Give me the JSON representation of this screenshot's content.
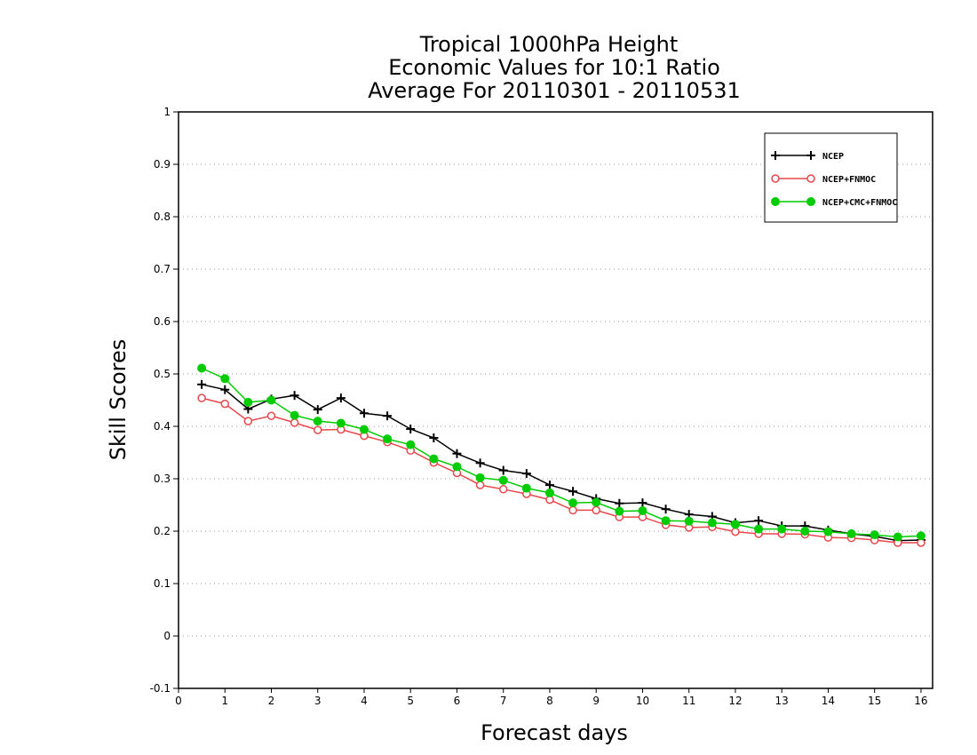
{
  "chart_data": {
    "type": "line",
    "title_lines": [
      "Tropical 1000hPa Height",
      "Economic Values for 10:1 Ratio",
      "Average For 20110301 - 20110531"
    ],
    "xlabel": "Forecast days",
    "ylabel": "Skill Scores",
    "xlim": [
      0,
      16.25
    ],
    "ylim": [
      -0.1,
      1
    ],
    "xticks": [
      0,
      1,
      2,
      3,
      4,
      5,
      6,
      7,
      8,
      9,
      10,
      11,
      12,
      13,
      14,
      15,
      16
    ],
    "xtick_labels": [
      "0",
      "1",
      "2",
      "3",
      "4",
      "5",
      "6",
      "7",
      "8",
      "9",
      "10",
      "11",
      "12",
      "13",
      "14",
      "15",
      "16"
    ],
    "yticks": [
      -0.1,
      0,
      0.1,
      0.2,
      0.3,
      0.4,
      0.5,
      0.6,
      0.7,
      0.8,
      0.9,
      1
    ],
    "ytick_labels": [
      "-0.1",
      "0",
      "0.1",
      "0.2",
      "0.3",
      "0.4",
      "0.5",
      "0.6",
      "0.7",
      "0.8",
      "0.9",
      "1"
    ],
    "grid": "horizontal-dotted",
    "legend_position": "top-right",
    "x": [
      0.5,
      1.0,
      1.5,
      2.0,
      2.5,
      3.0,
      3.5,
      4.0,
      4.5,
      5.0,
      5.5,
      6.0,
      6.5,
      7.0,
      7.5,
      8.0,
      8.5,
      9.0,
      9.5,
      10.0,
      10.5,
      11.0,
      11.5,
      12.0,
      12.5,
      13.0,
      13.5,
      14.0,
      14.5,
      15.0,
      15.5,
      16.0
    ],
    "series": [
      {
        "name": "NCEP",
        "color": "#000000",
        "marker": "plus",
        "values": [
          0.48,
          0.47,
          0.433,
          0.452,
          0.459,
          0.432,
          0.454,
          0.425,
          0.42,
          0.395,
          0.378,
          0.348,
          0.33,
          0.316,
          0.31,
          0.288,
          0.276,
          0.262,
          0.253,
          0.254,
          0.242,
          0.232,
          0.228,
          0.216,
          0.22,
          0.21,
          0.21,
          0.202,
          0.195,
          0.19,
          0.182,
          0.183
        ]
      },
      {
        "name": "NCEP+FNMOC",
        "color": "#e8474c",
        "marker": "open-circle",
        "values": [
          0.454,
          0.443,
          0.41,
          0.42,
          0.407,
          0.393,
          0.394,
          0.382,
          0.37,
          0.354,
          0.331,
          0.311,
          0.288,
          0.28,
          0.271,
          0.26,
          0.24,
          0.24,
          0.227,
          0.227,
          0.212,
          0.207,
          0.208,
          0.199,
          0.195,
          0.195,
          0.194,
          0.188,
          0.187,
          0.183,
          0.178,
          0.178
        ]
      },
      {
        "name": "NCEP+CMC+FNMOC",
        "color": "#00cc00",
        "marker": "filled-circle",
        "values": [
          0.511,
          0.491,
          0.446,
          0.45,
          0.421,
          0.41,
          0.406,
          0.394,
          0.376,
          0.365,
          0.338,
          0.323,
          0.302,
          0.297,
          0.282,
          0.273,
          0.254,
          0.255,
          0.238,
          0.239,
          0.22,
          0.219,
          0.216,
          0.213,
          0.204,
          0.204,
          0.2,
          0.199,
          0.195,
          0.193,
          0.189,
          0.191
        ]
      }
    ]
  }
}
